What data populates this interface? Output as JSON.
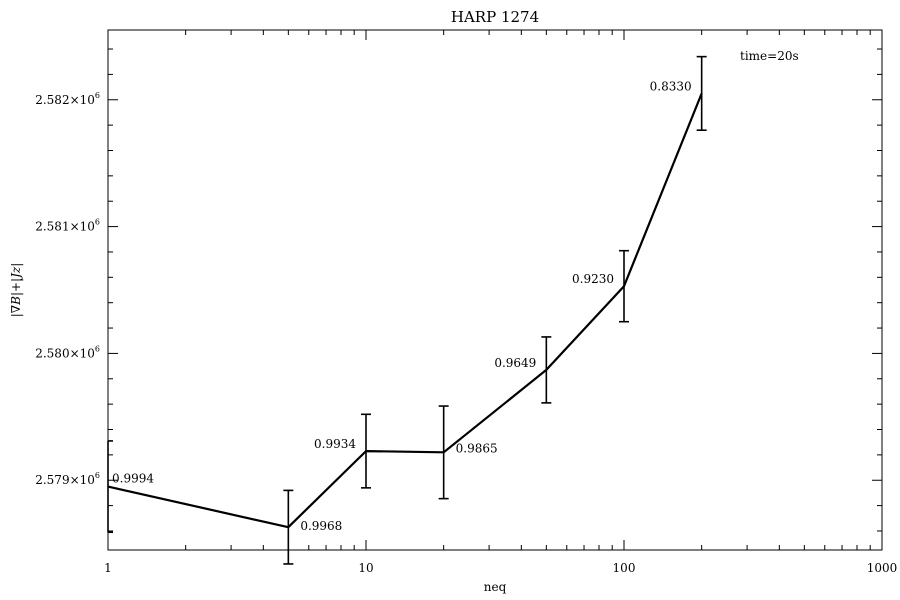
{
  "chart_data": {
    "type": "line",
    "title": "HARP 1274",
    "xlabel": "neq",
    "ylabel": "|∇B|+|Jz|",
    "x_scale": "log",
    "xlim": [
      1,
      1000
    ],
    "ylim": [
      2578450,
      2582550
    ],
    "x_ticks": [
      {
        "value": 1,
        "label": "1"
      },
      {
        "value": 10,
        "label": "10"
      },
      {
        "value": 100,
        "label": "100"
      },
      {
        "value": 1000,
        "label": "1000"
      }
    ],
    "y_ticks": [
      {
        "value": 2579000,
        "mant": "2.579×10",
        "exp": "6"
      },
      {
        "value": 2580000,
        "mant": "2.580×10",
        "exp": "6"
      },
      {
        "value": 2581000,
        "mant": "2.581×10",
        "exp": "6"
      },
      {
        "value": 2582000,
        "mant": "2.582×10",
        "exp": "6"
      }
    ],
    "annotation": "time=20s",
    "series": [
      {
        "points": [
          {
            "x": 1,
            "y": 2578950,
            "err": 360,
            "label": "0.9994",
            "label_pos": "right-above"
          },
          {
            "x": 5,
            "y": 2578630,
            "err": 290,
            "label": "0.9968",
            "label_pos": "right-below"
          },
          {
            "x": 10,
            "y": 2579230,
            "err": 290,
            "label": "0.9934",
            "label_pos": "left"
          },
          {
            "x": 20,
            "y": 2579220,
            "err": 365,
            "label": "0.9865",
            "label_pos": "right"
          },
          {
            "x": 50,
            "y": 2579870,
            "err": 260,
            "label": "0.9649",
            "label_pos": "left"
          },
          {
            "x": 100,
            "y": 2580530,
            "err": 280,
            "label": "0.9230",
            "label_pos": "left"
          },
          {
            "x": 200,
            "y": 2582050,
            "err": 290,
            "label": "0.8330",
            "label_pos": "left"
          }
        ]
      }
    ],
    "grid": false,
    "line_color": "#000000"
  }
}
